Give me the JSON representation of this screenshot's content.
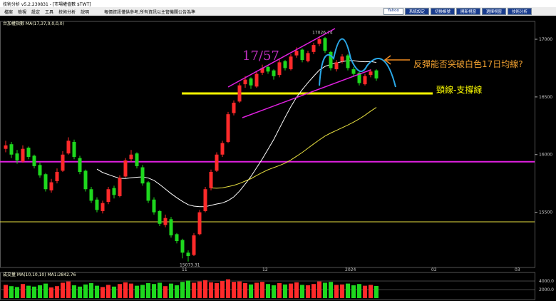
{
  "window": {
    "title": "技術分析 v5.2.230831 - [市場權值數 $TWT]",
    "menu": [
      "檔案",
      "檢視",
      "設定",
      "工具",
      "技術分析",
      "說明"
    ],
    "notice": "報價資訊僅供參考,所有資訊以主管機關公告為準",
    "buttons": [
      "Yahoo",
      "系統設定",
      "切換帳號",
      "開新視窗",
      "選擇視窗",
      "技術分析"
    ]
  },
  "chart_data": {
    "type": "candlestick",
    "header": "台加權指數 MA(17,37,0,0,0,0)",
    "ma_periods": [
      17,
      37
    ],
    "ma_colors": [
      "#ffffff",
      "#e8e040"
    ],
    "up_color": "#ff2a2a",
    "down_color": "#1ed81e",
    "ylim": [
      15040,
      17130
    ],
    "yticks": [
      15500,
      16000,
      16500,
      17000
    ],
    "x_labels": [
      "11",
      "12",
      "2024",
      "02",
      "03"
    ],
    "candles": [
      [
        16050,
        16120,
        16020,
        16080
      ],
      [
        16090,
        16110,
        15970,
        16000
      ],
      [
        16010,
        16040,
        15920,
        15950
      ],
      [
        15940,
        16080,
        15930,
        16050
      ],
      [
        16060,
        16070,
        15960,
        15980
      ],
      [
        15990,
        16000,
        15880,
        15900
      ],
      [
        15910,
        15930,
        15800,
        15820
      ],
      [
        15830,
        15840,
        15680,
        15700
      ],
      [
        15690,
        15790,
        15670,
        15760
      ],
      [
        15770,
        15880,
        15750,
        15850
      ],
      [
        15860,
        16030,
        15850,
        16000
      ],
      [
        16010,
        16150,
        16000,
        16120
      ],
      [
        16110,
        16130,
        15960,
        15980
      ],
      [
        15970,
        15990,
        15830,
        15850
      ],
      [
        15860,
        15870,
        15680,
        15700
      ],
      [
        15700,
        15720,
        15580,
        15600
      ],
      [
        15610,
        15630,
        15500,
        15520
      ],
      [
        15510,
        15600,
        15490,
        15580
      ],
      [
        15590,
        15720,
        15570,
        15700
      ],
      [
        15710,
        15730,
        15620,
        15650
      ],
      [
        15640,
        15820,
        15630,
        15800
      ],
      [
        15810,
        15970,
        15800,
        15950
      ],
      [
        15960,
        16040,
        15940,
        16000
      ],
      [
        16010,
        16020,
        15880,
        15900
      ],
      [
        15890,
        15910,
        15730,
        15750
      ],
      [
        15760,
        15770,
        15580,
        15600
      ],
      [
        15610,
        15630,
        15480,
        15500
      ],
      [
        15510,
        15520,
        15380,
        15400
      ],
      [
        15390,
        15480,
        15370,
        15450
      ],
      [
        15440,
        15460,
        15280,
        15300
      ],
      [
        15310,
        15320,
        15230,
        15250
      ],
      [
        15260,
        15270,
        15100,
        15150
      ],
      [
        15150,
        15170,
        15073.31,
        15120
      ],
      [
        15130,
        15320,
        15120,
        15300
      ],
      [
        15310,
        15520,
        15300,
        15500
      ],
      [
        15510,
        15720,
        15500,
        15700
      ],
      [
        15710,
        15870,
        15690,
        15850
      ],
      [
        15860,
        16020,
        15850,
        16000
      ],
      [
        16000,
        16120,
        15980,
        16100
      ],
      [
        16110,
        16370,
        16100,
        16350
      ],
      [
        16360,
        16470,
        16340,
        16450
      ],
      [
        16460,
        16620,
        16450,
        16600
      ],
      [
        16610,
        16680,
        16580,
        16650
      ],
      [
        16660,
        16670,
        16570,
        16600
      ],
      [
        16590,
        16720,
        16580,
        16700
      ],
      [
        16710,
        16780,
        16690,
        16750
      ],
      [
        16760,
        16770,
        16700,
        16720
      ],
      [
        16730,
        16740,
        16650,
        16680
      ],
      [
        16690,
        16830,
        16670,
        16800
      ],
      [
        16810,
        16820,
        16730,
        16750
      ],
      [
        16740,
        16870,
        16730,
        16850
      ],
      [
        16860,
        16930,
        16840,
        16900
      ],
      [
        16910,
        16920,
        16800,
        16820
      ],
      [
        16810,
        16900,
        16800,
        16880
      ],
      [
        16890,
        16970,
        16870,
        16950
      ],
      [
        16960,
        17026.74,
        16940,
        17000
      ],
      [
        17010,
        17020,
        16880,
        16900
      ],
      [
        16890,
        16900,
        16730,
        16750
      ],
      [
        16740,
        16820,
        16720,
        16800
      ],
      [
        16810,
        16870,
        16790,
        16850
      ],
      [
        16860,
        16870,
        16730,
        16750
      ],
      [
        16740,
        16760,
        16680,
        16700
      ],
      [
        16710,
        16720,
        16600,
        16620
      ],
      [
        16610,
        16700,
        16600,
        16680
      ],
      [
        16690,
        16740,
        16670,
        16720
      ],
      [
        16730,
        16740,
        16640,
        16660
      ]
    ],
    "levels": [
      {
        "value": 16530,
        "color": "#ffff00",
        "width": 3
      },
      {
        "value": 15938,
        "color": "#e020e0",
        "width": 2
      },
      {
        "value": 15417,
        "color": "#e8e040",
        "width": 1
      }
    ],
    "annotations": [
      "17/57",
      "反彈能否突破白色17日均線?",
      "頸線-支撐線"
    ],
    "volume": {
      "header": "成交量 MA(10,10,10) MA1:2842.76",
      "ylim": [
        0,
        5000
      ],
      "yticks": [
        {
          "value": 2000,
          "label": "2000.0"
        },
        {
          "value": 4000,
          "label": "4000.0"
        }
      ],
      "values": [
        3100,
        2800,
        2600,
        3300,
        2900,
        2700,
        3000,
        3400,
        2500,
        2800,
        3600,
        3900,
        3000,
        2700,
        3200,
        3500,
        2900,
        2600,
        3100,
        2700,
        3300,
        3700,
        3400,
        2900,
        3100,
        3500,
        3300,
        3600,
        2800,
        3400,
        3000,
        3800,
        4100,
        3600,
        3900,
        4200,
        3700,
        3500,
        4000,
        4400,
        3800,
        3900,
        3500,
        3200,
        3600,
        3800,
        3300,
        3000,
        3500,
        3200,
        3400,
        3700,
        3100,
        3000,
        3300,
        3900,
        3600,
        3800,
        3100,
        3200,
        3400,
        3000,
        3300,
        2900,
        3100,
        2842
      ]
    }
  }
}
